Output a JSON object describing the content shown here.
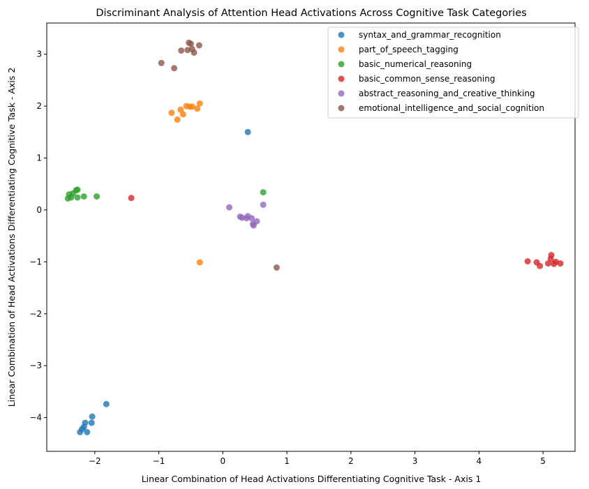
{
  "chart_data": {
    "type": "scatter",
    "title": "Discriminant Analysis of Attention Head Activations Across Cognitive Task Categories",
    "xlabel": "Linear Combination of Head Activations Differentiating Cognitive Task - Axis 1",
    "ylabel": "Linear Combination of Head Activations Differentiating Cognitive Task - Axis 2",
    "xlim": [
      -2.75,
      5.5
    ],
    "ylim": [
      -4.65,
      3.6
    ],
    "xticks": [
      -2,
      -1,
      0,
      1,
      2,
      3,
      4,
      5
    ],
    "xtick_labels": [
      "−2",
      "−1",
      "0",
      "1",
      "2",
      "3",
      "4",
      "5"
    ],
    "yticks": [
      -4,
      -3,
      -2,
      -1,
      0,
      1,
      2,
      3
    ],
    "ytick_labels": [
      "−4",
      "−3",
      "−2",
      "−1",
      "0",
      "1",
      "2",
      "3"
    ],
    "grid": false,
    "legend_position": "top-right",
    "series": [
      {
        "name": "syntax_and_grammar_recognition",
        "color": "#1f77b4",
        "points": [
          [
            -2.23,
            -4.28
          ],
          [
            -2.2,
            -4.22
          ],
          [
            -2.17,
            -4.18
          ],
          [
            -2.15,
            -4.1
          ],
          [
            -2.12,
            -4.28
          ],
          [
            -2.05,
            -4.1
          ],
          [
            -2.04,
            -3.98
          ],
          [
            -1.82,
            -3.74
          ],
          [
            0.39,
            1.5
          ]
        ]
      },
      {
        "name": "part_of_speech_tagging",
        "color": "#ff7f0e",
        "points": [
          [
            -0.8,
            1.87
          ],
          [
            -0.71,
            1.74
          ],
          [
            -0.66,
            1.93
          ],
          [
            -0.62,
            1.84
          ],
          [
            -0.57,
            2.0
          ],
          [
            -0.52,
            1.99
          ],
          [
            -0.48,
            1.99
          ],
          [
            -0.4,
            1.95
          ],
          [
            -0.36,
            2.05
          ],
          [
            -0.36,
            -1.01
          ]
        ]
      },
      {
        "name": "basic_numerical_reasoning",
        "color": "#2ca02c",
        "points": [
          [
            -2.42,
            0.22
          ],
          [
            -2.4,
            0.3
          ],
          [
            -2.37,
            0.24
          ],
          [
            -2.34,
            0.32
          ],
          [
            -2.29,
            0.38
          ],
          [
            -2.27,
            0.39
          ],
          [
            -2.27,
            0.24
          ],
          [
            -2.17,
            0.26
          ],
          [
            -1.97,
            0.26
          ],
          [
            0.63,
            0.34
          ]
        ]
      },
      {
        "name": "basic_common_sense_reasoning",
        "color": "#d62728",
        "points": [
          [
            4.76,
            -0.99
          ],
          [
            4.9,
            -1.01
          ],
          [
            4.95,
            -1.08
          ],
          [
            5.08,
            -1.03
          ],
          [
            5.12,
            -0.94
          ],
          [
            5.13,
            -0.87
          ],
          [
            5.17,
            -1.04
          ],
          [
            5.2,
            -1.0
          ],
          [
            5.27,
            -1.03
          ],
          [
            -1.43,
            0.23
          ]
        ]
      },
      {
        "name": "abstract_reasoning_and_creative_thinking",
        "color": "#9467bd",
        "points": [
          [
            0.1,
            0.05
          ],
          [
            0.27,
            -0.13
          ],
          [
            0.3,
            -0.15
          ],
          [
            0.37,
            -0.16
          ],
          [
            0.39,
            -0.12
          ],
          [
            0.45,
            -0.16
          ],
          [
            0.47,
            -0.27
          ],
          [
            0.48,
            -0.3
          ],
          [
            0.53,
            -0.22
          ],
          [
            0.63,
            0.1
          ]
        ]
      },
      {
        "name": "emotional_intelligence_and_social_cognition",
        "color": "#8c564b",
        "points": [
          [
            -0.96,
            2.83
          ],
          [
            -0.76,
            2.73
          ],
          [
            -0.65,
            3.07
          ],
          [
            -0.55,
            3.08
          ],
          [
            -0.53,
            3.22
          ],
          [
            -0.5,
            3.2
          ],
          [
            -0.48,
            3.1
          ],
          [
            -0.45,
            3.03
          ],
          [
            -0.37,
            3.17
          ],
          [
            0.84,
            -1.11
          ]
        ]
      }
    ]
  }
}
